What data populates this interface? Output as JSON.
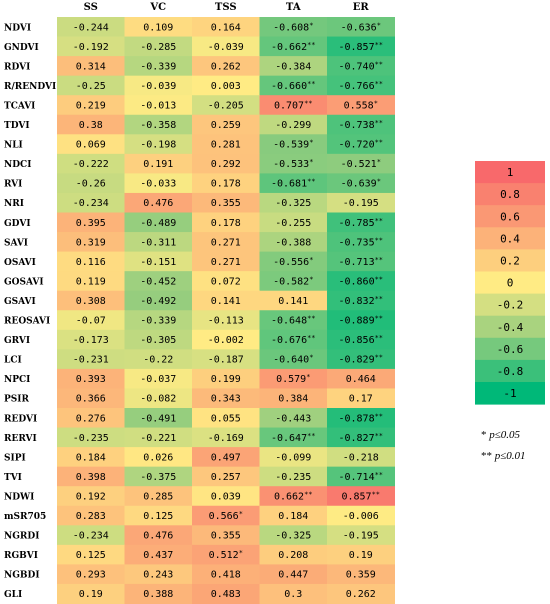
{
  "chart_data": {
    "type": "heatmap",
    "columns": [
      "SS",
      "VC",
      "TSS",
      "TA",
      "ER"
    ],
    "rows": [
      {
        "label": "NDVI",
        "values": [
          "-0.244",
          "0.109",
          "0.164",
          "-0.608*",
          "-0.636*"
        ]
      },
      {
        "label": "GNDVI",
        "values": [
          "-0.192",
          "-0.285",
          "-0.039",
          "-0.662**",
          "-0.857**"
        ]
      },
      {
        "label": "RDVI",
        "values": [
          "0.314",
          "-0.339",
          "0.262",
          "-0.384",
          "-0.740**"
        ]
      },
      {
        "label": "R/RENDVI",
        "values": [
          "-0.25",
          "-0.039",
          "0.003",
          "-0.660**",
          "-0.766**"
        ]
      },
      {
        "label": "TCAVI",
        "values": [
          "0.219",
          "-0.013",
          "-0.205",
          "0.707**",
          "0.558*"
        ]
      },
      {
        "label": "TDVI",
        "values": [
          "0.38",
          "-0.358",
          "0.259",
          "-0.299",
          "-0.738**"
        ]
      },
      {
        "label": "NLI",
        "values": [
          "0.069",
          "-0.198",
          "0.281",
          "-0.539*",
          "-0.720**"
        ]
      },
      {
        "label": "NDCI",
        "values": [
          "-0.222",
          "0.191",
          "0.292",
          "-0.533*",
          "-0.521*"
        ]
      },
      {
        "label": "RVI",
        "values": [
          "-0.26",
          "-0.033",
          "0.178",
          "-0.681**",
          "-0.639*"
        ]
      },
      {
        "label": "NRI",
        "values": [
          "-0.234",
          "0.476",
          "0.355",
          "-0.325",
          "-0.195"
        ]
      },
      {
        "label": "GDVI",
        "values": [
          "0.395",
          "-0.489",
          "0.178",
          "-0.255",
          "-0.785**"
        ]
      },
      {
        "label": "SAVI",
        "values": [
          "0.319",
          "-0.311",
          "0.271",
          "-0.388",
          "-0.735**"
        ]
      },
      {
        "label": "OSAVI",
        "values": [
          "0.116",
          "-0.151",
          "0.271",
          "-0.556*",
          "-0.713**"
        ]
      },
      {
        "label": "GOSAVI",
        "values": [
          "0.119",
          "-0.452",
          "0.072",
          "-0.582*",
          "-0.860**"
        ]
      },
      {
        "label": "GSAVI",
        "values": [
          "0.308",
          "-0.492",
          "0.141",
          "0.141",
          "-0.832**"
        ]
      },
      {
        "label": "REOSAVI",
        "values": [
          "-0.07",
          "-0.339",
          "-0.113",
          "-0.648**",
          "-0.889**"
        ]
      },
      {
        "label": "GRVI",
        "values": [
          "-0.173",
          "-0.305",
          "-0.002",
          "-0.676**",
          "-0.856**"
        ]
      },
      {
        "label": "LCI",
        "values": [
          "-0.231",
          "-0.22",
          "-0.187",
          "-0.640*",
          "-0.829**"
        ]
      },
      {
        "label": "NPCI",
        "values": [
          "0.393",
          "-0.037",
          "0.199",
          "0.579*",
          "0.464"
        ]
      },
      {
        "label": "PSIR",
        "values": [
          "0.366",
          "-0.082",
          "0.343",
          "0.384",
          "0.17"
        ]
      },
      {
        "label": "REDVI",
        "values": [
          "0.276",
          "-0.491",
          "0.055",
          "-0.443",
          "-0.878**"
        ]
      },
      {
        "label": "RERVI",
        "values": [
          "-0.235",
          "-0.221",
          "-0.169",
          "-0.647**",
          "-0.827**"
        ]
      },
      {
        "label": "SIPI",
        "values": [
          "0.184",
          "0.026",
          "0.497",
          "-0.099",
          "-0.218"
        ]
      },
      {
        "label": "TVI",
        "values": [
          "0.398",
          "-0.375",
          "0.257",
          "-0.235",
          "-0.714**"
        ]
      },
      {
        "label": "NDWI",
        "values": [
          "0.192",
          "0.285",
          "0.039",
          "0.662**",
          "0.857**"
        ]
      },
      {
        "label": "mSR705",
        "values": [
          "0.283",
          "0.125",
          "0.566*",
          "0.184",
          "-0.006"
        ]
      },
      {
        "label": "NGRDI",
        "values": [
          "-0.234",
          "0.476",
          "0.355",
          "-0.325",
          "-0.195"
        ]
      },
      {
        "label": "RGBVI",
        "values": [
          "0.125",
          "0.437",
          "0.512*",
          "0.208",
          "0.19"
        ]
      },
      {
        "label": "NGBDI",
        "values": [
          "0.293",
          "0.243",
          "0.418",
          "0.447",
          "0.359"
        ]
      },
      {
        "label": "GLI",
        "values": [
          "0.19",
          "0.388",
          "0.483",
          "0.3",
          "0.262"
        ]
      }
    ],
    "color_scale": {
      "labels": [
        "1",
        "0.8",
        "0.6",
        "0.4",
        "0.2",
        "0",
        "-0.2",
        "-0.4",
        "-0.6",
        "-0.8",
        "-1"
      ],
      "values": [
        1,
        0.8,
        0.6,
        0.4,
        0.2,
        0,
        -0.2,
        -0.4,
        -0.6,
        -0.8,
        -1
      ],
      "colors": [
        "#f8696b",
        "#fa8f71",
        "#fbaa77",
        "#fdd17f",
        "#ffeb84",
        "#f7e883",
        "#c8db80",
        "#98cd7e",
        "#72c27c",
        "#45b77a",
        "#1db979"
      ]
    },
    "significance_notes": [
      {
        "stars": "*",
        "text": "p≤0.05"
      },
      {
        "stars": "**",
        "text": "p≤0.01"
      }
    ]
  }
}
